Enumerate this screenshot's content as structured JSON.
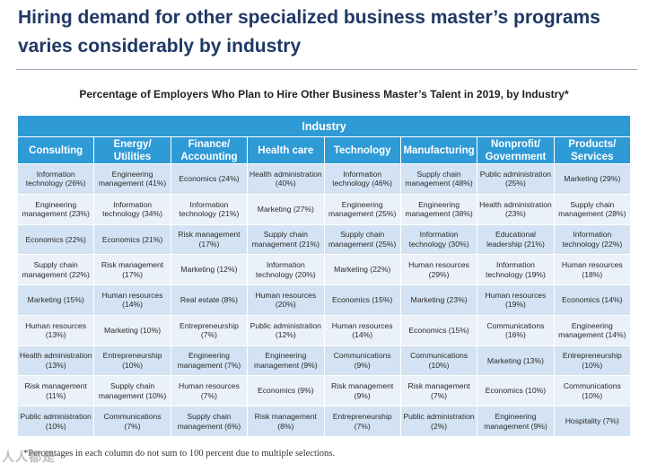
{
  "title": "Hiring demand for other specialized business master’s programs varies considerably by industry",
  "subtitle": "Percentage of Employers Who Plan to Hire Other Business Master’s Talent in 2019, by Industry*",
  "table": {
    "group_header": "Industry",
    "columns": [
      "Consulting",
      "Energy/ Utilities",
      "Finance/ Accounting",
      "Health care",
      "Technology",
      "Manufacturing",
      "Nonprofit/ Government",
      "Products/ Services"
    ],
    "rows": [
      [
        "Information technology (26%)",
        "Engineering management (41%)",
        "Economics (24%)",
        "Health administration (40%)",
        "Information technology (46%)",
        "Supply chain management (48%)",
        "Public administration (25%)",
        "Marketing (29%)"
      ],
      [
        "Engineering management (23%)",
        "Information technology (34%)",
        "Information technology (21%)",
        "Marketing (27%)",
        "Engineering management (25%)",
        "Engineering management (38%)",
        "Health administration (23%)",
        "Supply chain management (28%)"
      ],
      [
        "Economics (22%)",
        "Economics (21%)",
        "Risk management (17%)",
        "Supply chain management (21%)",
        "Supply chain management (25%)",
        "Information technology (30%)",
        "Educational leadership (21%)",
        "Information technology (22%)"
      ],
      [
        "Supply chain management (22%)",
        "Risk management (17%)",
        "Marketing (12%)",
        "Information technology (20%)",
        "Marketing (22%)",
        "Human resources (29%)",
        "Information technology (19%)",
        "Human resources (18%)"
      ],
      [
        "Marketing (15%)",
        "Human resources (14%)",
        "Real estate (8%)",
        "Human resources (20%)",
        "Economics (15%)",
        "Marketing (23%)",
        "Human resources (19%)",
        "Economics (14%)"
      ],
      [
        "Human resources (13%)",
        "Marketing (10%)",
        "Entrepreneurship (7%)",
        "Public administration (12%)",
        "Human resources (14%)",
        "Economics (15%)",
        "Communications (16%)",
        "Engineering management (14%)"
      ],
      [
        "Health administration (13%)",
        "Entrepreneurship (10%)",
        "Engineering management (7%)",
        "Engineering management (9%)",
        "Communications (9%)",
        "Communications (10%)",
        "Marketing (13%)",
        "Entrepreneurship (10%)"
      ],
      [
        "Risk management (11%)",
        "Supply chain management (10%)",
        "Human resources (7%)",
        "Economics (9%)",
        "Risk management (9%)",
        "Risk management (7%)",
        "Economics (10%)",
        "Communications (10%)"
      ],
      [
        "Public administration (10%)",
        "Communications (7%)",
        "Supply chain management (6%)",
        "Risk management (8%)",
        "Entrepreneurship (7%)",
        "Public administration (2%)",
        "Engineering management (9%)",
        "Hospitality (7%)"
      ]
    ]
  },
  "footnote": "*Percentages in each column do not sum to 100 percent due to multiple selections.",
  "watermark_text": "人人都是",
  "colors": {
    "title": "#1f3864",
    "header_bg": "#2e9ad6",
    "row_odd": "#d4e3f3",
    "row_even": "#eaf1f9"
  }
}
